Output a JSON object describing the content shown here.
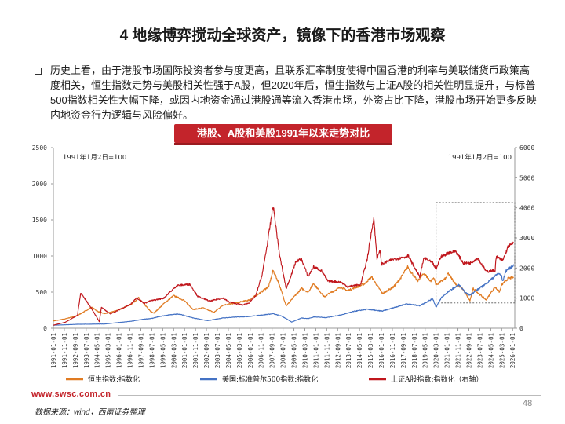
{
  "title": "4 地缘博弈搅动全球资产，镜像下的香港市场观察",
  "paragraph": "历史上看，由于港股市场国际投资者参与度更高，且联系汇率制度使得中国香港的利率与美联储货币政策高度相关，恒生指数走势与美股相关性强于A股，但2020年后，恒生指数与上证A股的相关性明显提升，与标普500指数相关性大幅下降，或因内地资金通过港股通等流入香港市场，外资占比下降，港股市场开始更多反映内地资金行为逻辑与风险偏好。",
  "banner": "港股、A股和美股1991年以来走势对比",
  "footer": {
    "url": "www.swsc.com.cn",
    "source": "数据来源：wind，西南证券整理",
    "page": "48"
  },
  "chart_data": {
    "type": "line",
    "annotation_left": "1991年1月2日=100",
    "annotation_right": "1991年1月2日=100",
    "left_axis": {
      "ylim": [
        0,
        2500
      ],
      "ticks": [
        0,
        500,
        1000,
        1500,
        2000,
        2500
      ]
    },
    "right_axis": {
      "ylim": [
        0,
        6000
      ],
      "ticks": [
        0,
        1000,
        2000,
        3000,
        4000,
        5000,
        6000
      ]
    },
    "x_range": [
      "1991-01-01",
      "2026-03-01"
    ],
    "x_tick_labels": [
      "1991-01-01",
      "1991-11-01",
      "1992-09-01",
      "1993-07-01",
      "1994-05-01",
      "1995-03-01",
      "1996-01-01",
      "1996-11-01",
      "1997-09-01",
      "1998-07-01",
      "1999-05-01",
      "2000-03-01",
      "2001-01-01",
      "2001-11-01",
      "2002-09-01",
      "2003-07-01",
      "2004-05-01",
      "2005-03-01",
      "2006-01-01",
      "2006-11-01",
      "2007-09-01",
      "2008-07-01",
      "2009-05-01",
      "2010-03-01",
      "2011-01-01",
      "2011-11-01",
      "2012-09-01",
      "2013-07-01",
      "2014-05-01",
      "2015-03-01",
      "2016-01-01",
      "2016-11-01",
      "2017-09-01",
      "2018-07-01",
      "2019-05-01",
      "2020-03-01",
      "2021-01-01",
      "2021-11-01",
      "2022-09-01",
      "2023-07-01",
      "2024-05-01",
      "2025-03-01",
      "2026-01-01"
    ],
    "highlight_box": {
      "x_from": "2020-03-01",
      "x_to": "2026-03-01",
      "y_from_left": 350,
      "y_to_left": 1740
    },
    "series": [
      {
        "name": "恒生指数:指数化",
        "axis": "left",
        "color": "#e07b22",
        "points": [
          [
            "1991-01-01",
            100
          ],
          [
            "1991-12-01",
            130
          ],
          [
            "1992-11-01",
            175
          ],
          [
            "1993-12-01",
            290
          ],
          [
            "1994-06-01",
            230
          ],
          [
            "1994-12-01",
            200
          ],
          [
            "1995-12-01",
            250
          ],
          [
            "1996-12-01",
            330
          ],
          [
            "1997-07-01",
            420
          ],
          [
            "1998-06-01",
            230
          ],
          [
            "1998-09-01",
            210
          ],
          [
            "1999-06-01",
            340
          ],
          [
            "2000-03-01",
            450
          ],
          [
            "2000-12-01",
            390
          ],
          [
            "2001-09-01",
            260
          ],
          [
            "2002-06-01",
            280
          ],
          [
            "2003-04-01",
            220
          ],
          [
            "2003-12-01",
            320
          ],
          [
            "2004-12-01,",
            350
          ],
          [
            "2005-12-01",
            390
          ],
          [
            "2006-12-01",
            510
          ],
          [
            "2007-06-01",
            580
          ],
          [
            "2007-10-01",
            800
          ],
          [
            "2008-03-01",
            630
          ],
          [
            "2008-10-01",
            310
          ],
          [
            "2009-06-01",
            450
          ],
          [
            "2009-12-01",
            550
          ],
          [
            "2010-06-01",
            500
          ],
          [
            "2010-11-01",
            620
          ],
          [
            "2011-09-01",
            430
          ],
          [
            "2011-12-01",
            470
          ],
          [
            "2012-12-01",
            570
          ],
          [
            "2013-06-01",
            520
          ],
          [
            "2014-09-01",
            610
          ],
          [
            "2015-04-01",
            710
          ],
          [
            "2016-02-01",
            480
          ],
          [
            "2016-12-01",
            570
          ],
          [
            "2017-06-01",
            680
          ],
          [
            "2018-01-01",
            850
          ],
          [
            "2018-10-01",
            650
          ],
          [
            "2019-04-01",
            760
          ],
          [
            "2019-10-01",
            650
          ],
          [
            "2020-01-01",
            700
          ],
          [
            "2020-03-01",
            600
          ],
          [
            "2020-12-01",
            690
          ],
          [
            "2021-02-01",
            760
          ],
          [
            "2021-09-01",
            610
          ],
          [
            "2022-03-01",
            550
          ],
          [
            "2022-10-01",
            380
          ],
          [
            "2023-01-01",
            550
          ],
          [
            "2023-06-01",
            480
          ],
          [
            "2024-01-01",
            390
          ],
          [
            "2024-05-01",
            490
          ],
          [
            "2024-09-01",
            570
          ],
          [
            "2025-01-01",
            500
          ],
          [
            "2025-03-01",
            600
          ],
          [
            "2025-09-01",
            690
          ],
          [
            "2026-02-01",
            700
          ]
        ]
      },
      {
        "name": "美国:标准普尔500指数:指数化",
        "axis": "right",
        "color": "#4472c4",
        "points": [
          [
            "1991-01-01",
            100
          ],
          [
            "1992-12-01",
            130
          ],
          [
            "1994-12-01",
            140
          ],
          [
            "1995-12-01",
            185
          ],
          [
            "1996-12-01",
            230
          ],
          [
            "1997-12-01",
            300
          ],
          [
            "1998-08-01",
            330
          ],
          [
            "1998-12-01",
            375
          ],
          [
            "1999-12-01",
            450
          ],
          [
            "2000-08-01",
            470
          ],
          [
            "2001-09-01",
            340
          ],
          [
            "2002-10-01",
            250
          ],
          [
            "2003-12-01",
            340
          ],
          [
            "2004-12-01",
            370
          ],
          [
            "2005-12-01",
            390
          ],
          [
            "2006-12-01",
            440
          ],
          [
            "2007-10-01",
            480
          ],
          [
            "2008-06-01",
            400
          ],
          [
            "2009-03-01",
            205
          ],
          [
            "2009-12-01",
            340
          ],
          [
            "2010-06-01",
            320
          ],
          [
            "2010-12-01",
            380
          ],
          [
            "2011-10-01",
            350
          ],
          [
            "2012-12-01",
            440
          ],
          [
            "2013-12-01",
            560
          ],
          [
            "2014-12-01",
            630
          ],
          [
            "2015-08-01",
            590
          ],
          [
            "2016-02-01",
            570
          ],
          [
            "2016-12-01",
            680
          ],
          [
            "2017-12-01",
            810
          ],
          [
            "2018-02-01",
            800
          ],
          [
            "2018-12-01",
            750
          ],
          [
            "2019-12-01",
            980
          ],
          [
            "2020-03-01",
            700
          ],
          [
            "2020-08-01",
            1020
          ],
          [
            "2020-12-01",
            1150
          ],
          [
            "2021-06-01",
            1310
          ],
          [
            "2021-12-01",
            1440
          ],
          [
            "2022-06-01",
            1170
          ],
          [
            "2022-10-01",
            1100
          ],
          [
            "2023-06-01",
            1310
          ],
          [
            "2023-12-01",
            1460
          ],
          [
            "2024-06-01",
            1640
          ],
          [
            "2024-12-01",
            1830
          ],
          [
            "2025-03-01",
            1720
          ],
          [
            "2025-04-01",
            1550
          ],
          [
            "2025-07-01",
            1920
          ],
          [
            "2025-12-01",
            2030
          ],
          [
            "2026-02-01",
            2120
          ]
        ]
      },
      {
        "name": "上证A股指数:指数化（右轴）",
        "axis": "right",
        "color": "#c0161c",
        "points": [
          [
            "1991-01-01",
            100
          ],
          [
            "1991-12-01",
            200
          ],
          [
            "1992-05-01",
            300
          ],
          [
            "1992-11-01",
            430
          ],
          [
            "1993-02-01",
            1170
          ],
          [
            "1993-12-01",
            650
          ],
          [
            "1994-07-01",
            220
          ],
          [
            "1994-09-01",
            700
          ],
          [
            "1995-05-01",
            470
          ],
          [
            "1996-12-01",
            800
          ],
          [
            "1997-05-01",
            1020
          ],
          [
            "1997-12-01",
            830
          ],
          [
            "1998-06-01",
            910
          ],
          [
            "1999-06-01",
            1000
          ],
          [
            "2000-06-01",
            1420
          ],
          [
            "2001-06-01",
            1460
          ],
          [
            "2002-01-01",
            1060
          ],
          [
            "2002-12-01",
            900
          ],
          [
            "2003-12-01",
            1000
          ],
          [
            "2004-06-01",
            870
          ],
          [
            "2005-06-01",
            770
          ],
          [
            "2005-12-01",
            840
          ],
          [
            "2006-06-01",
            1070
          ],
          [
            "2006-12-01",
            1790
          ],
          [
            "2007-05-01",
            2870
          ],
          [
            "2007-10-01",
            4080
          ],
          [
            "2008-04-01",
            2400
          ],
          [
            "2008-10-01",
            1310
          ],
          [
            "2009-07-01",
            2230
          ],
          [
            "2009-12-01",
            2290
          ],
          [
            "2010-06-01",
            1710
          ],
          [
            "2010-11-01",
            2040
          ],
          [
            "2011-06-01",
            1920
          ],
          [
            "2011-12-01",
            1570
          ],
          [
            "2012-12-01",
            1530
          ],
          [
            "2013-06-01",
            1380
          ],
          [
            "2014-06-01",
            1450
          ],
          [
            "2014-12-01",
            2290
          ],
          [
            "2015-06-01",
            3670
          ],
          [
            "2015-09-01",
            2330
          ],
          [
            "2015-12-01",
            2580
          ],
          [
            "2016-01-01",
            2130
          ],
          [
            "2016-12-01",
            2290
          ],
          [
            "2017-12-01",
            2380
          ],
          [
            "2018-01-01",
            2440
          ],
          [
            "2018-12-01",
            1710
          ],
          [
            "2019-04-01",
            2340
          ],
          [
            "2019-12-01",
            2160
          ],
          [
            "2020-03-01",
            1960
          ],
          [
            "2020-07-01",
            2360
          ],
          [
            "2021-02-01",
            2500
          ],
          [
            "2021-09-01",
            2560
          ],
          [
            "2022-04-01",
            2160
          ],
          [
            "2022-10-01",
            2160
          ],
          [
            "2023-05-01",
            2330
          ],
          [
            "2024-01-01",
            1880
          ],
          [
            "2024-09-01",
            1920
          ],
          [
            "2024-10-01",
            2380
          ],
          [
            "2025-04-01",
            2250
          ],
          [
            "2025-09-01",
            2720
          ],
          [
            "2026-02-01",
            2820
          ]
        ]
      }
    ]
  }
}
